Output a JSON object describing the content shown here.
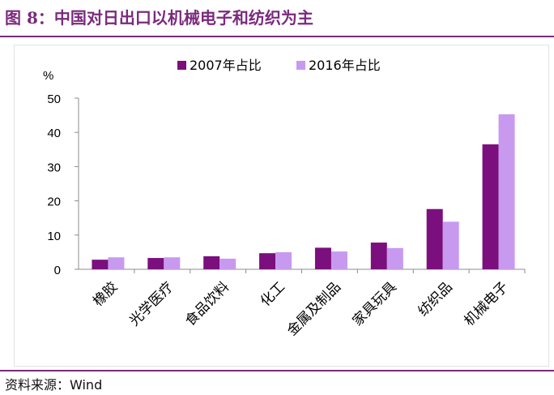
{
  "figure": {
    "title": "图 8：中国对日出口以机械电子和纺织为主",
    "source_label": "资料来源：",
    "source_value": "Wind"
  },
  "colors": {
    "accent": "#7a2a7e",
    "series_2007": "#7b0f7d",
    "series_2016": "#c79af0"
  },
  "chart_data": {
    "type": "bar",
    "ylabel": "%",
    "ylim": [
      0,
      50
    ],
    "yticks": [
      0,
      10,
      20,
      30,
      40,
      50
    ],
    "grid": false,
    "legend_position": "top",
    "categories": [
      "橡胶",
      "光学医疗",
      "食品饮料",
      "化工",
      "金属及制品",
      "家具玩具",
      "纺织品",
      "机械电子"
    ],
    "series": [
      {
        "name": "2007年占比",
        "values": [
          2.8,
          3.3,
          3.8,
          4.7,
          6.3,
          7.8,
          17.6,
          36.5
        ]
      },
      {
        "name": "2016年占比",
        "values": [
          3.5,
          3.5,
          3.1,
          5.0,
          5.2,
          6.2,
          13.9,
          45.3
        ]
      }
    ]
  }
}
